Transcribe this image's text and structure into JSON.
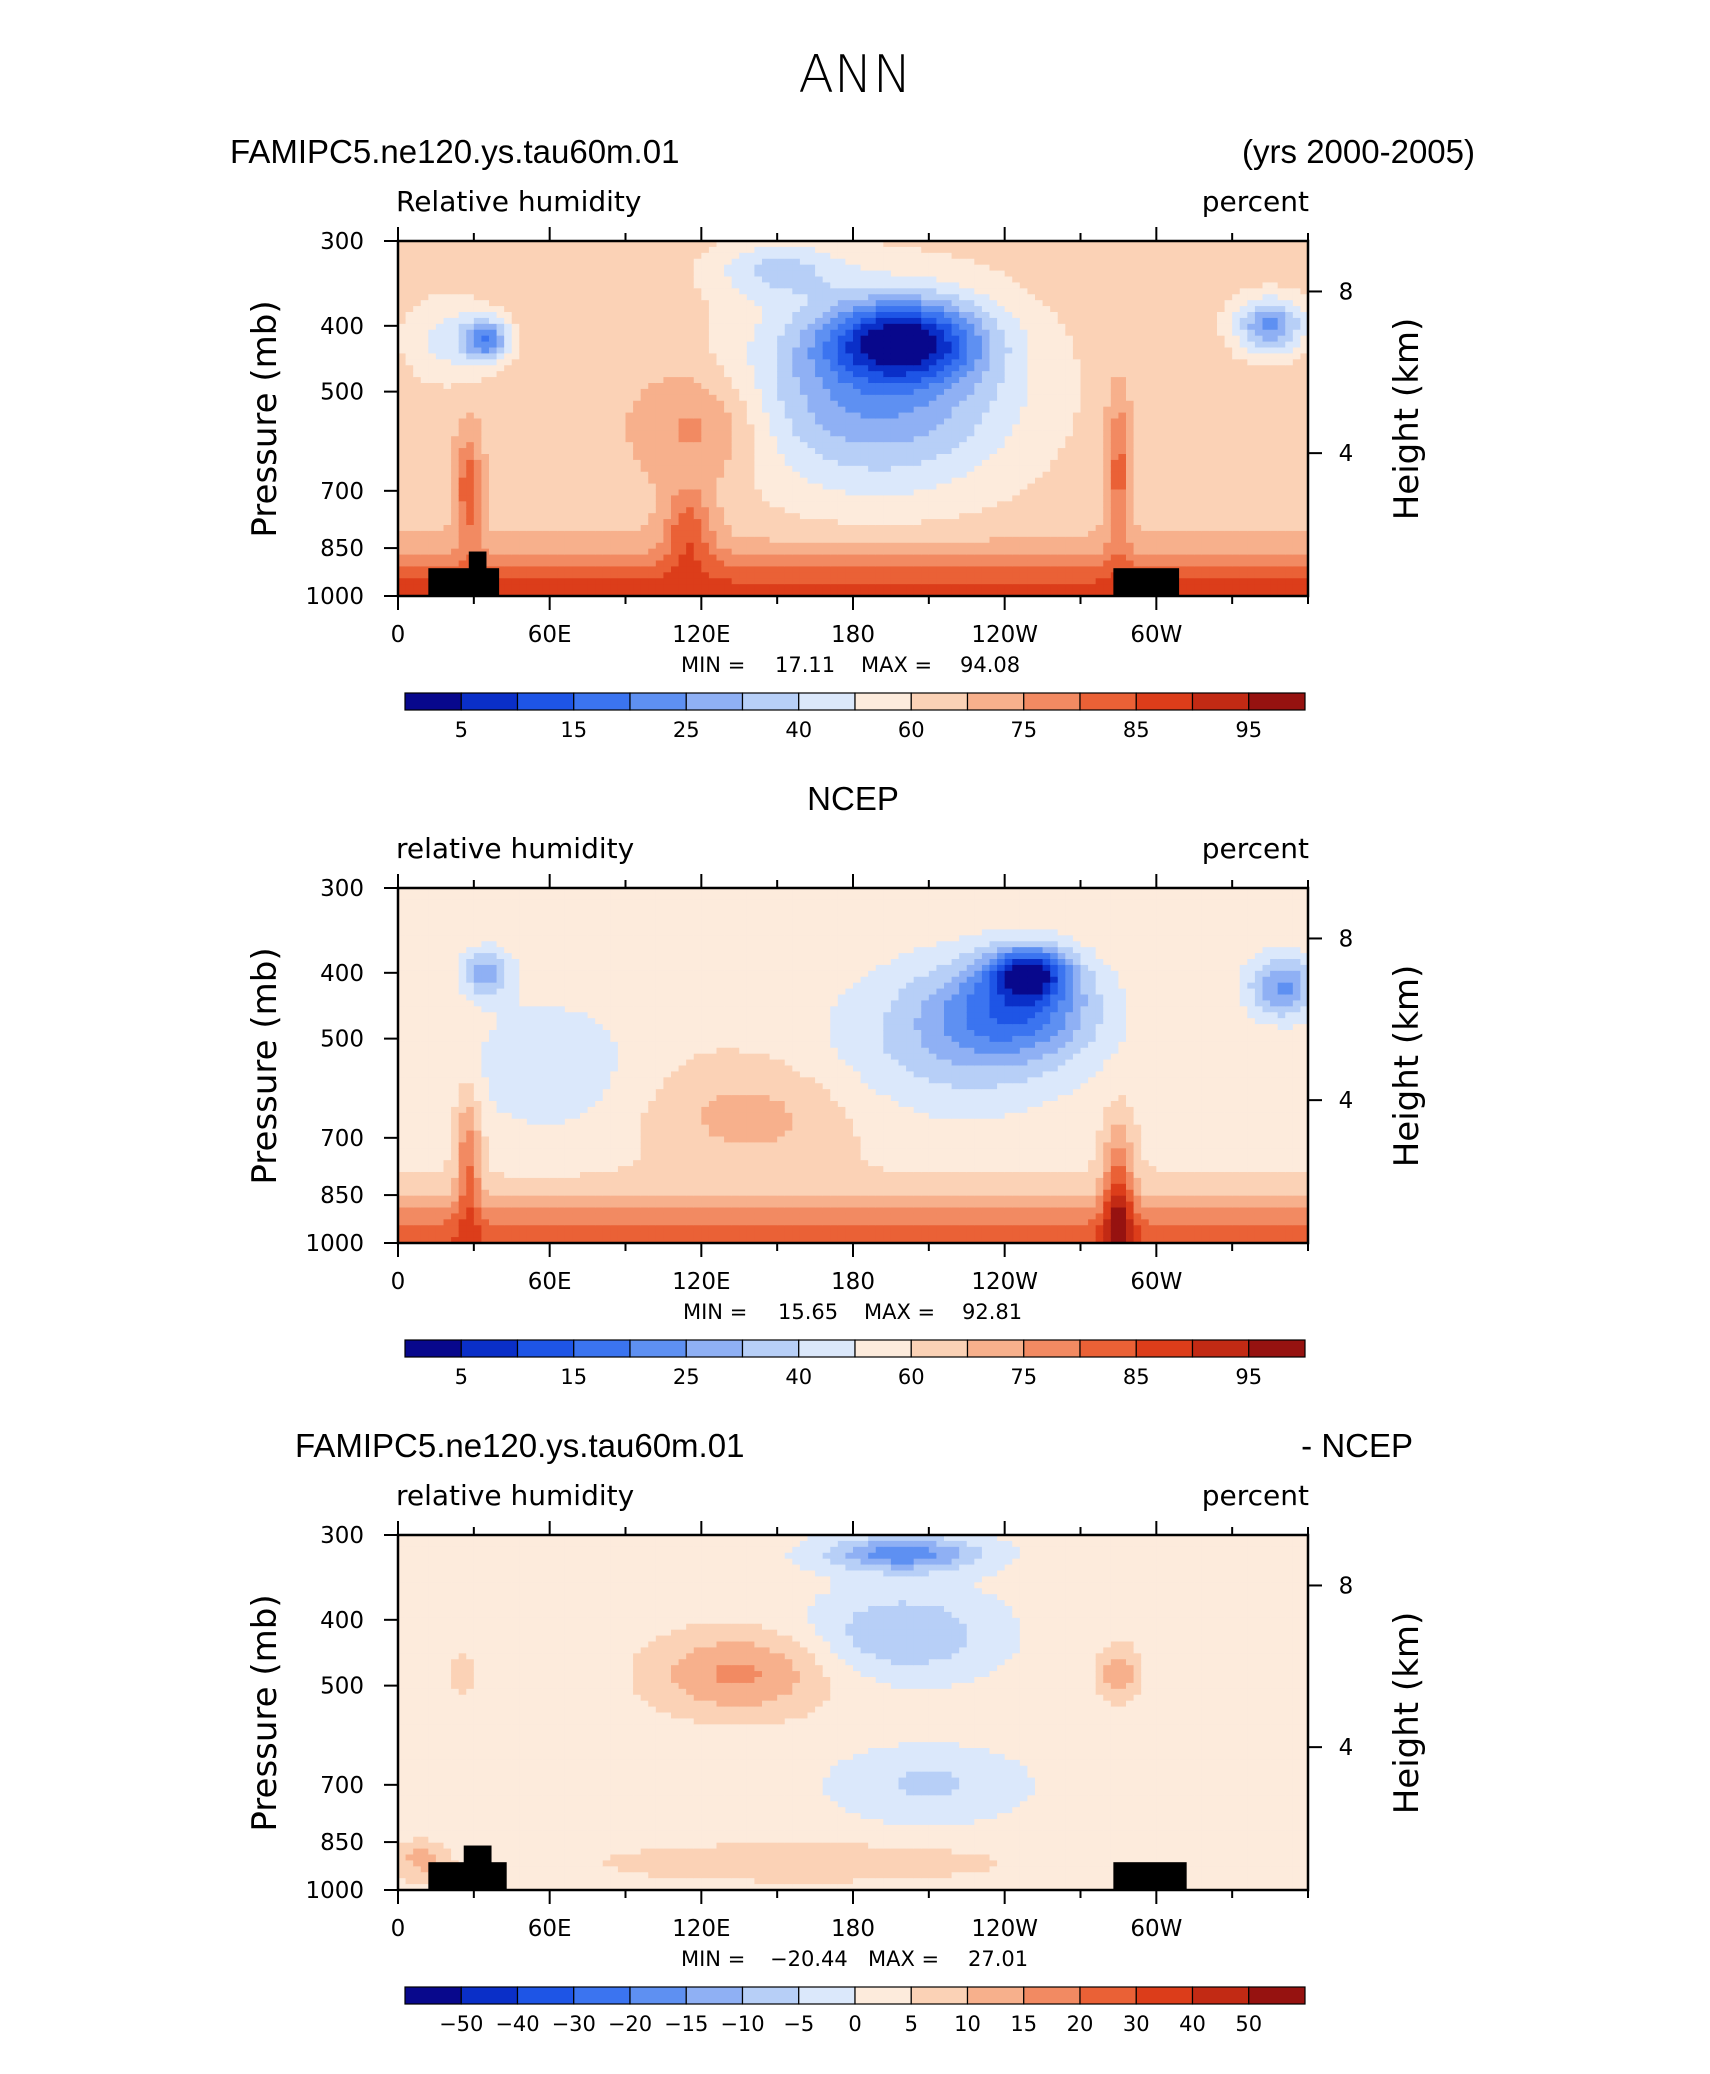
{
  "page_title": "ANN",
  "colors": {
    "abs_palette": [
      "#08088c",
      "#0a2fc8",
      "#1e55e6",
      "#3b74f0",
      "#5e90f2",
      "#8fb0f4",
      "#b7cff7",
      "#dbe8fb",
      "#fdebdc",
      "#fbd2b6",
      "#f7b08c",
      "#f28a62",
      "#ea6136",
      "#dc3d1a",
      "#c22a14",
      "#961210"
    ],
    "diff_palette": [
      "#08088c",
      "#0a2fc8",
      "#1e55e6",
      "#3b74f0",
      "#5e90f2",
      "#8fb0f4",
      "#b7cff7",
      "#dbe8fb",
      "#fdebdc",
      "#fbd2b6",
      "#f7b08c",
      "#f28a62",
      "#ea6136",
      "#dc3d1a",
      "#c22a14",
      "#961210"
    ],
    "land_mask": "#000000"
  },
  "chart_data": [
    {
      "type": "heatmap",
      "left_title": "FAMIPC5.ne120.ys.tau60m.01",
      "right_title": "(yrs 2000-2005)",
      "variable": "Relative humidity",
      "units": "percent",
      "ylabel": "Pressure (mb)",
      "ylabel_right": "Height (km)",
      "y_ticks": [
        "300",
        "400",
        "500",
        "700",
        "850",
        "1000"
      ],
      "y_ticks_right": [
        "8",
        "4"
      ],
      "x_ticks": [
        "0",
        "60E",
        "120E",
        "180",
        "120W",
        "60W"
      ],
      "xlim": [
        0,
        360
      ],
      "ylim_mb": [
        1000,
        300
      ],
      "stats": {
        "min_label": "MIN =",
        "min": "17.11",
        "max_label": "MAX =",
        "max": "94.08"
      },
      "colorbar_labels": [
        "5",
        "15",
        "25",
        "40",
        "60",
        "75",
        "85",
        "95"
      ],
      "colorbar_label_slots": [
        1,
        3,
        5,
        7,
        9,
        11,
        13,
        15
      ],
      "palette": "abs",
      "base_value": 60,
      "features": [
        {
          "lon": 35,
          "p": 420,
          "v": 30,
          "w": 9,
          "h": 0.06
        },
        {
          "lon": 20,
          "p": 420,
          "v": 48,
          "w": 18,
          "h": 0.12
        },
        {
          "lon": 200,
          "p": 420,
          "v": 18,
          "w": 30,
          "h": 0.11
        },
        {
          "lon": 190,
          "p": 500,
          "v": 30,
          "w": 55,
          "h": 0.28
        },
        {
          "lon": 345,
          "p": 400,
          "v": 30,
          "w": 14,
          "h": 0.08
        },
        {
          "lon": 150,
          "p": 330,
          "v": 45,
          "w": 25,
          "h": 0.08
        },
        {
          "lon": 120,
          "p": 560,
          "v": 74,
          "w": 25,
          "h": 0.16
        },
        {
          "lon": 285,
          "p": 650,
          "v": 78,
          "w": 5,
          "h": 0.22
        },
        {
          "lon": 28,
          "p": 700,
          "v": 80,
          "w": 5,
          "h": 0.16
        },
        {
          "lon": 115,
          "p": 800,
          "v": 78,
          "w": 10,
          "h": 0.12
        }
      ],
      "boundary_layer": {
        "value": 84,
        "peak": 90,
        "thickness": 0.12
      },
      "land": [
        {
          "lon0": 12,
          "lon1": 40,
          "p_top": 910
        },
        {
          "lon0": 28,
          "lon1": 35,
          "p_top": 860
        },
        {
          "lon0": 283,
          "lon1": 309,
          "p_top": 910
        }
      ]
    },
    {
      "type": "heatmap",
      "center_title": "NCEP",
      "variable": "relative humidity",
      "units": "percent",
      "ylabel": "Pressure (mb)",
      "ylabel_right": "Height (km)",
      "y_ticks": [
        "300",
        "400",
        "500",
        "700",
        "850",
        "1000"
      ],
      "y_ticks_right": [
        "8",
        "4"
      ],
      "x_ticks": [
        "0",
        "60E",
        "120E",
        "180",
        "120W",
        "60W"
      ],
      "xlim": [
        0,
        360
      ],
      "ylim_mb": [
        1000,
        300
      ],
      "stats": {
        "min_label": "MIN =",
        "min": "15.65",
        "max_label": "MAX =",
        "max": "92.81"
      },
      "colorbar_labels": [
        "5",
        "15",
        "25",
        "40",
        "60",
        "75",
        "85",
        "95"
      ],
      "colorbar_label_slots": [
        1,
        3,
        5,
        7,
        9,
        11,
        13,
        15
      ],
      "palette": "abs",
      "base_value": 55,
      "features": [
        {
          "lon": 250,
          "p": 400,
          "v": 18,
          "w": 15,
          "h": 0.07
        },
        {
          "lon": 245,
          "p": 450,
          "v": 28,
          "w": 30,
          "h": 0.14
        },
        {
          "lon": 220,
          "p": 500,
          "v": 40,
          "w": 50,
          "h": 0.22
        },
        {
          "lon": 35,
          "p": 400,
          "v": 35,
          "w": 10,
          "h": 0.07
        },
        {
          "lon": 350,
          "p": 420,
          "v": 30,
          "w": 14,
          "h": 0.09
        },
        {
          "lon": 60,
          "p": 550,
          "v": 45,
          "w": 35,
          "h": 0.2
        },
        {
          "lon": 140,
          "p": 650,
          "v": 65,
          "w": 40,
          "h": 0.15
        },
        {
          "lon": 285,
          "p": 870,
          "v": 82,
          "w": 6,
          "h": 0.2
        },
        {
          "lon": 28,
          "p": 760,
          "v": 75,
          "w": 5,
          "h": 0.2
        }
      ],
      "boundary_layer": {
        "value": 80,
        "peak": 85,
        "thickness": 0.12
      },
      "land": []
    },
    {
      "type": "heatmap",
      "left_title": "FAMIPC5.ne120.ys.tau60m.01",
      "right_title": "- NCEP",
      "variable": "relative humidity",
      "units": "percent",
      "ylabel": "Pressure (mb)",
      "ylabel_right": "Height (km)",
      "y_ticks": [
        "300",
        "400",
        "500",
        "700",
        "850",
        "1000"
      ],
      "y_ticks_right": [
        "8",
        "4"
      ],
      "x_ticks": [
        "0",
        "60E",
        "120E",
        "180",
        "120W",
        "60W"
      ],
      "xlim": [
        0,
        360
      ],
      "ylim_mb": [
        1000,
        300
      ],
      "stats": {
        "min_label": "MIN =",
        "min": "−20.44",
        "max_label": "MAX =",
        "max": "27.01"
      },
      "colorbar_labels": [
        "−50",
        "−40",
        "−30",
        "−20",
        "−15",
        "−10",
        "−5",
        "0",
        "5",
        "10",
        "15",
        "20",
        "30",
        "40",
        "50"
      ],
      "colorbar_label_slots": [
        1,
        2,
        3,
        4,
        5,
        6,
        7,
        8,
        9,
        10,
        11,
        12,
        13,
        14,
        15
      ],
      "palette": "diff",
      "base_value": 2,
      "features": [
        {
          "lon": 200,
          "p": 320,
          "v": -18,
          "w": 30,
          "h": 0.05
        },
        {
          "lon": 200,
          "p": 420,
          "v": -10,
          "w": 35,
          "h": 0.12
        },
        {
          "lon": 210,
          "p": 700,
          "v": -6,
          "w": 35,
          "h": 0.1
        },
        {
          "lon": 135,
          "p": 480,
          "v": 16,
          "w": 35,
          "h": 0.12
        },
        {
          "lon": 285,
          "p": 480,
          "v": 14,
          "w": 8,
          "h": 0.08
        },
        {
          "lon": 25,
          "p": 480,
          "v": 6,
          "w": 10,
          "h": 0.1
        },
        {
          "lon": 160,
          "p": 900,
          "v": 8,
          "w": 80,
          "h": 0.05
        },
        {
          "lon": 10,
          "p": 900,
          "v": 12,
          "w": 10,
          "h": 0.05
        }
      ],
      "boundary_layer": {
        "value": 4,
        "peak": 6,
        "thickness": 0.08
      },
      "land": [
        {
          "lon0": 12,
          "lon1": 43,
          "p_top": 910
        },
        {
          "lon0": 26,
          "lon1": 37,
          "p_top": 860
        },
        {
          "lon0": 283,
          "lon1": 312,
          "p_top": 910
        }
      ]
    }
  ]
}
